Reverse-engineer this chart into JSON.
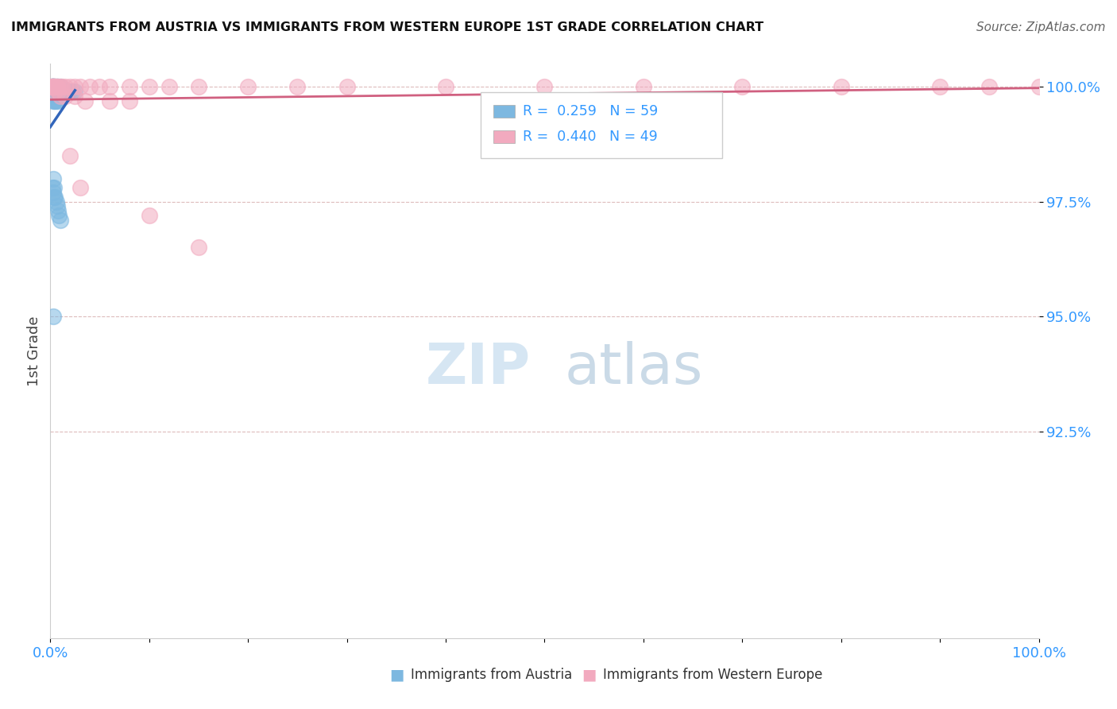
{
  "title": "IMMIGRANTS FROM AUSTRIA VS IMMIGRANTS FROM WESTERN EUROPE 1ST GRADE CORRELATION CHART",
  "source": "Source: ZipAtlas.com",
  "xlabel_austria": "Immigrants from Austria",
  "xlabel_western": "Immigrants from Western Europe",
  "ylabel": "1st Grade",
  "r_austria": 0.259,
  "n_austria": 59,
  "r_western": 0.44,
  "n_western": 49,
  "color_austria": "#7db8e0",
  "color_western": "#f2aabf",
  "trendline_austria": "#3366bb",
  "trendline_western": "#d06080",
  "watermark_zip": "ZIP",
  "watermark_atlas": "atlas",
  "background_color": "#ffffff",
  "ytick_positions": [
    1.0,
    0.975,
    0.95,
    0.925
  ],
  "ytick_labels": [
    "100.0%",
    "97.5%",
    "95.0%",
    "92.5%"
  ],
  "xlim": [
    0.0,
    1.0
  ],
  "ylim": [
    0.88,
    1.005
  ]
}
